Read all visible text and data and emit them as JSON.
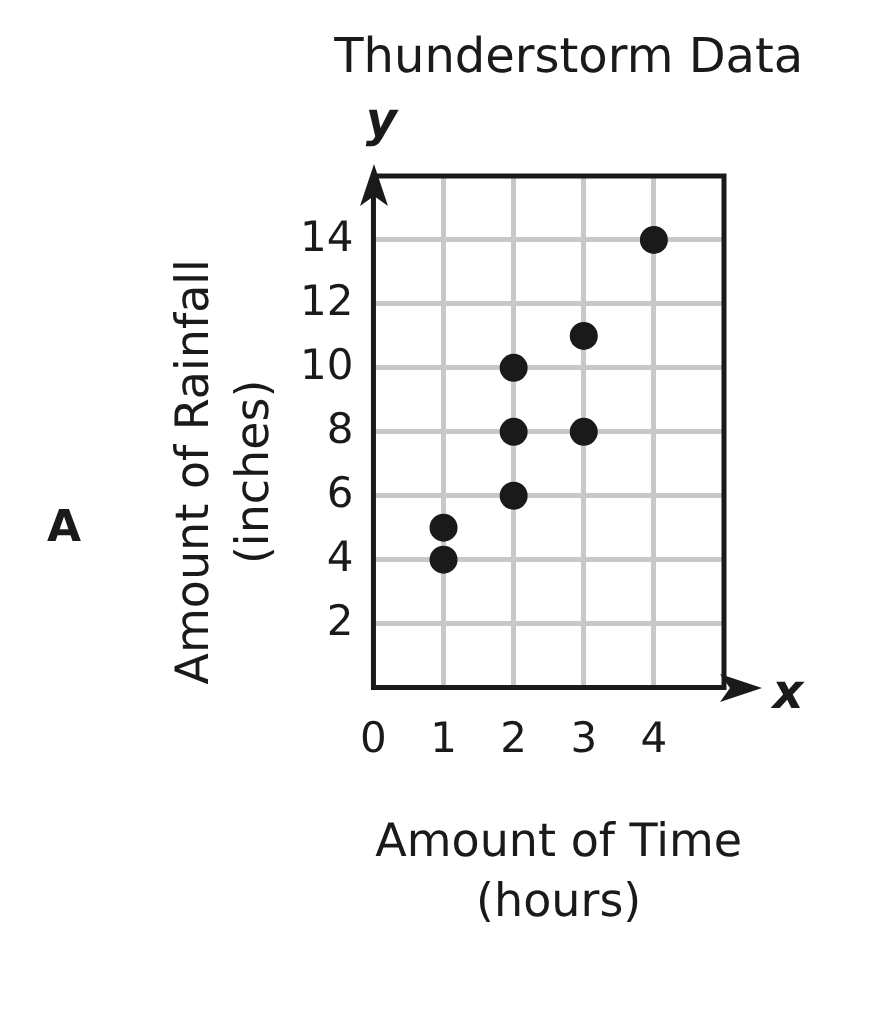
{
  "chart_data": {
    "type": "scatter",
    "title": "Thunderstorm Data",
    "xlabel": "Amount of Time (hours)",
    "ylabel": "Amount of Rainfall (inches)",
    "x": [
      1,
      1,
      2,
      2,
      2,
      3,
      3,
      4
    ],
    "series": [
      {
        "color": "#1a1a1a",
        "values": [
          4,
          5,
          6,
          8,
          10,
          8,
          11,
          14
        ]
      }
    ],
    "xlim": [
      0,
      5
    ],
    "ylim": [
      0,
      16
    ],
    "xticks": [
      0,
      1,
      2,
      3,
      4
    ],
    "yticks": [
      2,
      4,
      6,
      8,
      10,
      12,
      14
    ],
    "grid": true,
    "legend": false,
    "marker": "circle",
    "annotations": [
      "A",
      "x",
      "y"
    ]
  }
}
